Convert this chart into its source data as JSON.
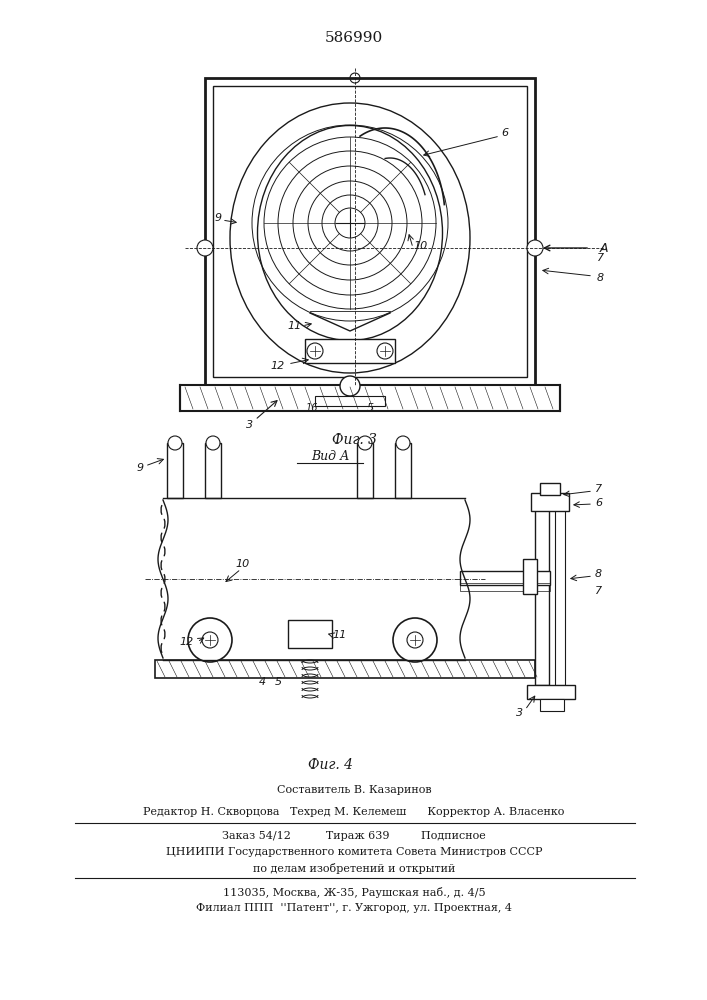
{
  "patent_number": "586990",
  "fig3_label": "Фиг. 3",
  "fig4_label": "Фиг. 4",
  "view_a_label": "Вид А",
  "bg_color": "#ffffff",
  "line_color": "#1a1a1a",
  "footer_lines": [
    "Составитель В. Казаринов",
    "Редактор Н. Скворцова   Техред М. Келемеш      Корректор А. Власенко",
    "Заказ 54/12          Тираж 639         Подписное",
    "ЦНИИПИ Государственного комитета Совета Министров СССР",
    "по делам изобретений и открытий",
    "113035, Москва, Ж-35, Раушская наб., д. 4/5",
    "Филиал ППП  ''Патент'', г. Ужгород, ул. Проектная, 4"
  ]
}
